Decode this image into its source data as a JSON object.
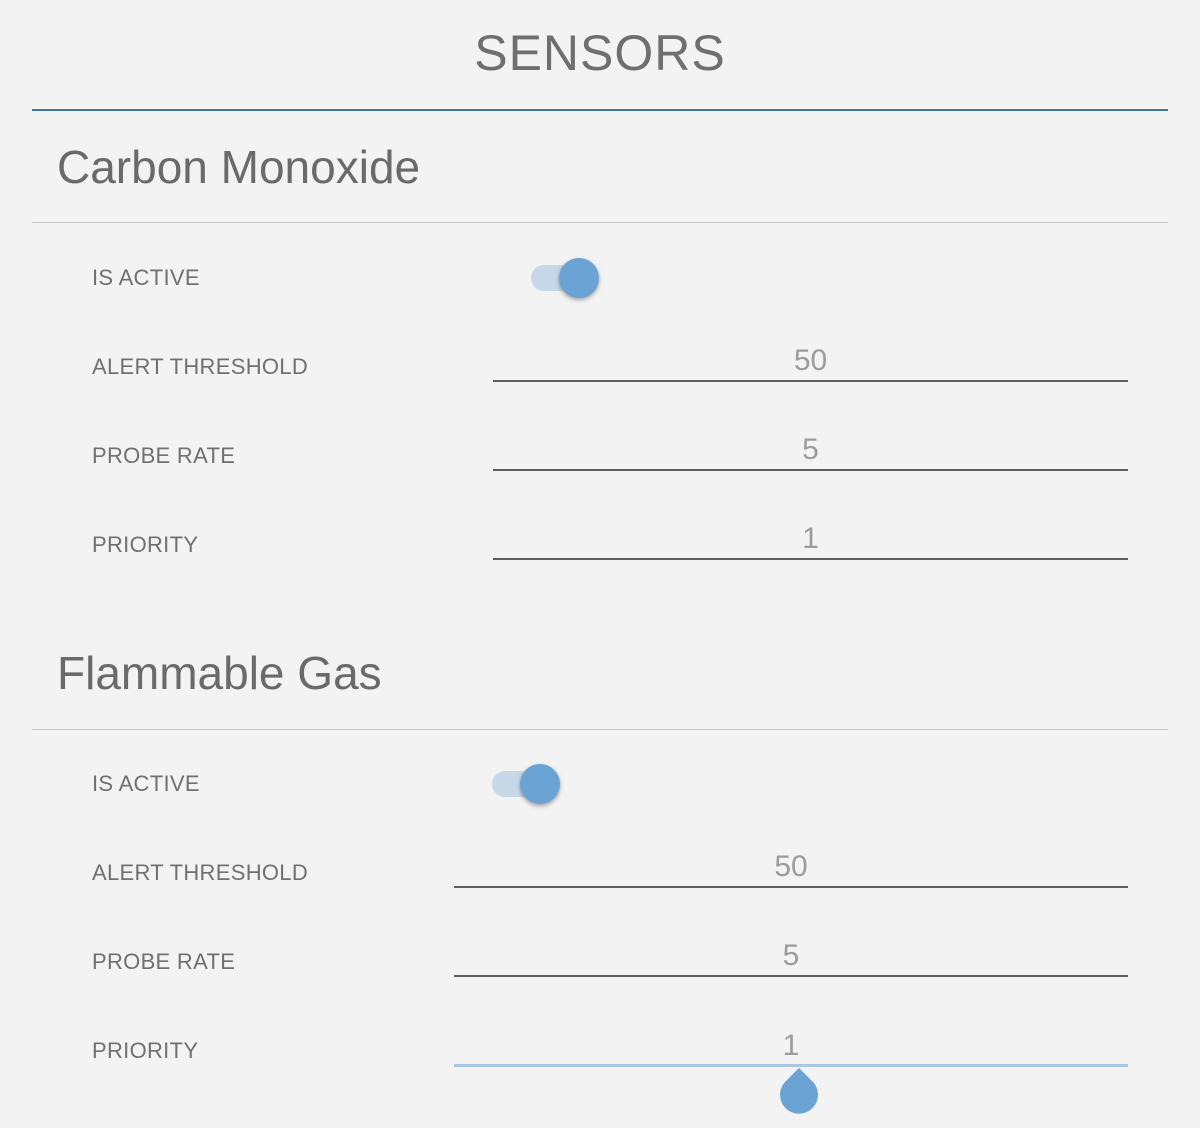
{
  "page": {
    "title": "SENSORS"
  },
  "sections": [
    {
      "title": "Carbon Monoxide",
      "is_active_label": "IS ACTIVE",
      "alert_threshold_label": "ALERT THRESHOLD",
      "alert_threshold_value": "50",
      "probe_rate_label": "PROBE RATE",
      "probe_rate_value": "5",
      "priority_label": "PRIORITY",
      "priority_value": "1"
    },
    {
      "title": "Flammable Gas",
      "is_active_label": "IS ACTIVE",
      "alert_threshold_label": "ALERT THRESHOLD",
      "alert_threshold_value": "50",
      "probe_rate_label": "PROBE RATE",
      "probe_rate_value": "5",
      "priority_label": "PRIORITY",
      "priority_value": "1"
    }
  ],
  "colors": {
    "accent": "#6aa3d4",
    "accent_track": "#c7d9e9",
    "title_rule": "#3c74a8",
    "background": "#f3f3f3"
  }
}
